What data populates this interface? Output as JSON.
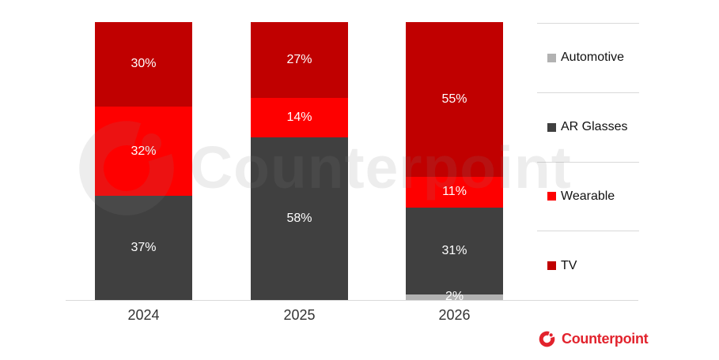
{
  "watermark": {
    "text": "Counterpoint"
  },
  "footer_logo": {
    "text": "Counterpoint",
    "color": "#e2232d"
  },
  "chart_data": {
    "type": "bar",
    "subtype": "stacked-100-percent",
    "title": "",
    "categories": [
      "2024",
      "2025",
      "2026"
    ],
    "series": [
      {
        "name": "TV",
        "color": "#c00000",
        "values": [
          30,
          27,
          55
        ]
      },
      {
        "name": "Wearable",
        "color": "#fe0000",
        "values": [
          32,
          14,
          11
        ]
      },
      {
        "name": "AR Glasses",
        "color": "#404040",
        "values": [
          37,
          58,
          31
        ]
      },
      {
        "name": "Automotive",
        "color": "#b2b2b2",
        "values": [
          0,
          0,
          2
        ]
      }
    ],
    "value_suffix": "%",
    "stack_order_bottom_to_top": [
      "TV",
      "Wearable",
      "AR Glasses",
      "Automotive"
    ],
    "legend_order_top_to_bottom": [
      "Automotive",
      "AR Glasses",
      "Wearable",
      "TV"
    ],
    "legend_position": "right",
    "grid": "off",
    "axis_line_color": "#d9d9d9",
    "data_label_color": "#ffffff",
    "category_label_color": "#333333"
  }
}
